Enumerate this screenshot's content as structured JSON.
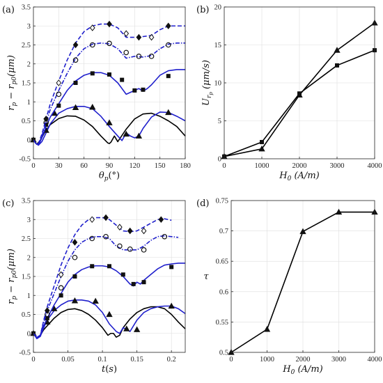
{
  "chart_data": [
    {
      "panel": "(a)",
      "type": "line",
      "xlabel": "θp(°)",
      "ylabel": "rp − rp0(μm)",
      "xlim": [
        0,
        180
      ],
      "ylim": [
        -0.5,
        3.5
      ],
      "xticks": [
        "0",
        "30",
        "60",
        "90",
        "120",
        "150",
        "180"
      ],
      "yticks": [
        "-0.5",
        "0",
        "0.5",
        "1",
        "1.5",
        "2",
        "2.5",
        "3",
        "3.5"
      ],
      "grid": true,
      "series": [
        {
          "color": "#000000",
          "style": "solid",
          "marker": "none",
          "x": [
            0,
            4,
            8,
            14,
            20,
            30,
            40,
            50,
            60,
            70,
            80,
            88,
            90,
            92,
            96,
            100,
            110,
            120,
            130,
            140,
            150,
            160,
            170,
            180
          ],
          "y": [
            0,
            -0.12,
            -0.02,
            0.22,
            0.4,
            0.56,
            0.63,
            0.62,
            0.52,
            0.35,
            0.1,
            -0.08,
            -0.1,
            -0.06,
            0.1,
            -0.05,
            0.28,
            0.55,
            0.68,
            0.7,
            0.62,
            0.5,
            0.35,
            0.1
          ]
        },
        {
          "color": "#1f1fcc",
          "style": "solid",
          "marker": "triangle",
          "x": [
            0,
            3,
            6,
            10,
            15,
            20,
            30,
            40,
            50,
            60,
            70,
            80,
            90,
            100,
            105,
            110,
            115,
            120,
            125,
            130,
            140,
            150,
            160,
            170,
            180
          ],
          "y": [
            0,
            -0.1,
            -0.14,
            -0.05,
            0.18,
            0.42,
            0.7,
            0.82,
            0.88,
            0.88,
            0.82,
            0.62,
            0.35,
            0.1,
            -0.02,
            0.18,
            0.1,
            0.05,
            0.1,
            0.3,
            0.6,
            0.73,
            0.72,
            0.62,
            0.5
          ],
          "marker_x": [
            0,
            15,
            25,
            50,
            70,
            90,
            110,
            125,
            160
          ],
          "marker_y": [
            0,
            0.25,
            0.7,
            0.85,
            0.86,
            0.45,
            0.15,
            0.1,
            0.72
          ]
        },
        {
          "color": "#1f1fcc",
          "style": "solid",
          "marker": "square",
          "x": [
            0,
            3,
            6,
            10,
            15,
            20,
            30,
            40,
            50,
            60,
            70,
            80,
            90,
            100,
            110,
            120,
            125,
            130,
            135,
            140,
            150,
            160,
            170,
            180
          ],
          "y": [
            0,
            -0.1,
            -0.14,
            0.05,
            0.35,
            0.6,
            0.95,
            1.3,
            1.55,
            1.7,
            1.77,
            1.77,
            1.7,
            1.5,
            1.2,
            1.3,
            1.35,
            1.28,
            1.35,
            1.45,
            1.7,
            1.82,
            1.85,
            1.85
          ],
          "marker_x": [
            0,
            15,
            30,
            50,
            70,
            90,
            105,
            120,
            130,
            160
          ],
          "marker_y": [
            0,
            0.4,
            0.9,
            1.5,
            1.75,
            1.72,
            1.58,
            1.3,
            1.32,
            1.68
          ]
        },
        {
          "color": "#1f1fcc",
          "style": "dashdot",
          "marker": "circle",
          "x": [
            0,
            3,
            6,
            10,
            15,
            20,
            30,
            40,
            50,
            60,
            70,
            80,
            90,
            100,
            110,
            120,
            130,
            140,
            150,
            160,
            170,
            180
          ],
          "y": [
            0,
            -0.1,
            -0.12,
            0.1,
            0.45,
            0.8,
            1.3,
            1.75,
            2.15,
            2.4,
            2.52,
            2.55,
            2.53,
            2.4,
            2.15,
            2.2,
            2.18,
            2.22,
            2.4,
            2.52,
            2.55,
            2.55
          ],
          "marker_x": [
            15,
            30,
            50,
            70,
            90,
            110,
            125,
            140,
            160
          ],
          "marker_y": [
            0.45,
            1.2,
            2.1,
            2.5,
            2.54,
            2.3,
            2.2,
            2.2,
            2.5
          ]
        },
        {
          "color": "#1f1fcc",
          "style": "dashed",
          "marker": "diamond",
          "x": [
            0,
            3,
            6,
            10,
            15,
            20,
            30,
            40,
            50,
            60,
            70,
            80,
            90,
            100,
            110,
            120,
            130,
            140,
            150,
            160,
            170,
            180
          ],
          "y": [
            0,
            -0.1,
            -0.1,
            0.15,
            0.55,
            0.95,
            1.55,
            2.1,
            2.55,
            2.85,
            3.0,
            3.05,
            3.05,
            2.95,
            2.7,
            2.7,
            2.72,
            2.75,
            2.9,
            3.0,
            3.0,
            3.0
          ],
          "marker_x": [
            15,
            30,
            50,
            70,
            90,
            110,
            125,
            140,
            160
          ],
          "marker_y": [
            0.55,
            1.5,
            2.5,
            2.95,
            3.05,
            2.8,
            2.7,
            2.7,
            3.0
          ]
        }
      ]
    },
    {
      "panel": "(b)",
      "type": "line",
      "xlabel": "H0 (A/m)",
      "ylabel": "Urp (μm/s)",
      "xlim": [
        0,
        4000
      ],
      "ylim": [
        0,
        20
      ],
      "xticks": [
        "0",
        "1000",
        "2000",
        "3000",
        "4000"
      ],
      "yticks": [
        "0",
        "5",
        "10",
        "15",
        "20"
      ],
      "grid": true,
      "series": [
        {
          "color": "#000000",
          "marker": "triangle",
          "x": [
            0,
            1000,
            2000,
            3000,
            4000
          ],
          "y": [
            0.3,
            1.3,
            8.4,
            14.3,
            17.9
          ]
        },
        {
          "color": "#000000",
          "marker": "square",
          "x": [
            0,
            1000,
            2000,
            3000,
            4000
          ],
          "y": [
            0.3,
            2.2,
            8.6,
            12.3,
            14.3
          ]
        }
      ]
    },
    {
      "panel": "(c)",
      "type": "line",
      "xlabel": "t(s)",
      "ylabel": "rp − rp0(μm)",
      "xlim": [
        0,
        0.22
      ],
      "ylim": [
        -0.5,
        3.5
      ],
      "xticks": [
        "0",
        "0.05",
        "0.1",
        "0.15",
        "0.2"
      ],
      "yticks": [
        "-0.5",
        "0",
        "0.5",
        "1",
        "1.5",
        "2",
        "2.5",
        "3",
        "3.5"
      ],
      "grid": true,
      "series": [
        {
          "color": "#000000",
          "style": "solid",
          "marker": "none",
          "x": [
            0,
            0.005,
            0.01,
            0.015,
            0.02,
            0.03,
            0.04,
            0.05,
            0.06,
            0.07,
            0.08,
            0.09,
            0.1,
            0.108,
            0.112,
            0.116,
            0.12,
            0.125,
            0.13,
            0.14,
            0.15,
            0.16,
            0.17,
            0.18,
            0.19,
            0.2,
            0.21,
            0.22
          ],
          "y": [
            0,
            -0.12,
            -0.05,
            0.1,
            0.2,
            0.4,
            0.55,
            0.63,
            0.65,
            0.6,
            0.5,
            0.35,
            0.15,
            -0.05,
            0.0,
            0.0,
            -0.1,
            -0.05,
            0.15,
            0.38,
            0.55,
            0.65,
            0.7,
            0.7,
            0.65,
            0.5,
            0.3,
            0.12
          ]
        },
        {
          "color": "#1f1fcc",
          "style": "solid",
          "marker": "triangle",
          "x": [
            0,
            0.005,
            0.01,
            0.015,
            0.02,
            0.03,
            0.04,
            0.05,
            0.06,
            0.07,
            0.08,
            0.09,
            0.1,
            0.11,
            0.12,
            0.125,
            0.13,
            0.135,
            0.14,
            0.15,
            0.16,
            0.17,
            0.18,
            0.19,
            0.2,
            0.21,
            0.22
          ],
          "y": [
            0,
            -0.14,
            -0.08,
            0.15,
            0.35,
            0.6,
            0.75,
            0.85,
            0.88,
            0.88,
            0.85,
            0.75,
            0.55,
            0.25,
            0.05,
            0.0,
            0.15,
            0.1,
            0.05,
            0.35,
            0.55,
            0.65,
            0.7,
            0.72,
            0.72,
            0.65,
            0.52
          ],
          "marker_x": [
            0,
            0.02,
            0.03,
            0.06,
            0.09,
            0.11,
            0.135,
            0.15,
            0.2
          ],
          "marker_y": [
            0,
            0.3,
            0.65,
            0.86,
            0.85,
            0.5,
            0.12,
            0.1,
            0.72
          ]
        },
        {
          "color": "#1f1fcc",
          "style": "solid",
          "marker": "square",
          "x": [
            0,
            0.005,
            0.01,
            0.015,
            0.02,
            0.03,
            0.04,
            0.05,
            0.06,
            0.07,
            0.08,
            0.09,
            0.1,
            0.11,
            0.12,
            0.13,
            0.14,
            0.145,
            0.15,
            0.155,
            0.16,
            0.17,
            0.18,
            0.19,
            0.2,
            0.21,
            0.22
          ],
          "y": [
            0,
            -0.12,
            -0.05,
            0.2,
            0.4,
            0.75,
            1.05,
            1.35,
            1.55,
            1.68,
            1.75,
            1.78,
            1.78,
            1.75,
            1.65,
            1.5,
            1.3,
            1.25,
            1.35,
            1.3,
            1.4,
            1.55,
            1.7,
            1.8,
            1.83,
            1.85,
            1.85
          ],
          "marker_x": [
            0,
            0.02,
            0.04,
            0.06,
            0.085,
            0.11,
            0.13,
            0.145,
            0.16,
            0.2
          ],
          "marker_y": [
            0,
            0.4,
            1.0,
            1.5,
            1.77,
            1.77,
            1.55,
            1.3,
            1.35,
            1.75
          ]
        },
        {
          "color": "#1f1fcc",
          "style": "dashdot",
          "marker": "circle",
          "x": [
            0,
            0.005,
            0.01,
            0.015,
            0.02,
            0.03,
            0.04,
            0.05,
            0.06,
            0.07,
            0.08,
            0.09,
            0.1,
            0.11,
            0.12,
            0.13,
            0.14,
            0.15,
            0.16,
            0.17,
            0.18,
            0.19,
            0.2,
            0.21
          ],
          "y": [
            0,
            -0.1,
            -0.05,
            0.3,
            0.6,
            1.05,
            1.5,
            1.9,
            2.2,
            2.4,
            2.5,
            2.55,
            2.55,
            2.5,
            2.3,
            2.2,
            2.2,
            2.2,
            2.3,
            2.45,
            2.55,
            2.57,
            2.55,
            2.53
          ],
          "marker_x": [
            0.02,
            0.04,
            0.06,
            0.085,
            0.105,
            0.125,
            0.14,
            0.16,
            0.19
          ],
          "marker_y": [
            0.5,
            1.2,
            2.0,
            2.5,
            2.55,
            2.3,
            2.22,
            2.2,
            2.55
          ]
        },
        {
          "color": "#1f1fcc",
          "style": "dashed",
          "marker": "diamond",
          "x": [
            0,
            0.005,
            0.01,
            0.015,
            0.02,
            0.03,
            0.04,
            0.05,
            0.06,
            0.07,
            0.08,
            0.09,
            0.1,
            0.11,
            0.12,
            0.13,
            0.14,
            0.15,
            0.16,
            0.17,
            0.18,
            0.19,
            0.2
          ],
          "y": [
            0,
            -0.1,
            -0.05,
            0.35,
            0.7,
            1.25,
            1.8,
            2.25,
            2.6,
            2.85,
            3.0,
            3.05,
            3.05,
            3.0,
            2.85,
            2.7,
            2.68,
            2.7,
            2.8,
            2.9,
            3.0,
            3.02,
            2.98
          ],
          "marker_x": [
            0.02,
            0.04,
            0.06,
            0.085,
            0.105,
            0.125,
            0.14,
            0.16,
            0.185
          ],
          "marker_y": [
            0.6,
            1.55,
            2.4,
            3.0,
            3.05,
            2.8,
            2.7,
            2.7,
            3.0
          ]
        }
      ]
    },
    {
      "panel": "(d)",
      "type": "line",
      "xlabel": "H0 (A/m)",
      "ylabel": "τ",
      "xlim": [
        0,
        4000
      ],
      "ylim": [
        0.5,
        0.75
      ],
      "xticks": [
        "0",
        "1000",
        "2000",
        "3000",
        "4000"
      ],
      "yticks": [
        "0.5",
        "0.55",
        "0.6",
        "0.65",
        "0.7",
        "0.75"
      ],
      "grid": true,
      "series": [
        {
          "color": "#000000",
          "marker": "triangle",
          "x": [
            0,
            1000,
            2000,
            3000,
            4000
          ],
          "y": [
            0.5,
            0.538,
            0.699,
            0.731,
            0.731
          ]
        }
      ]
    }
  ]
}
